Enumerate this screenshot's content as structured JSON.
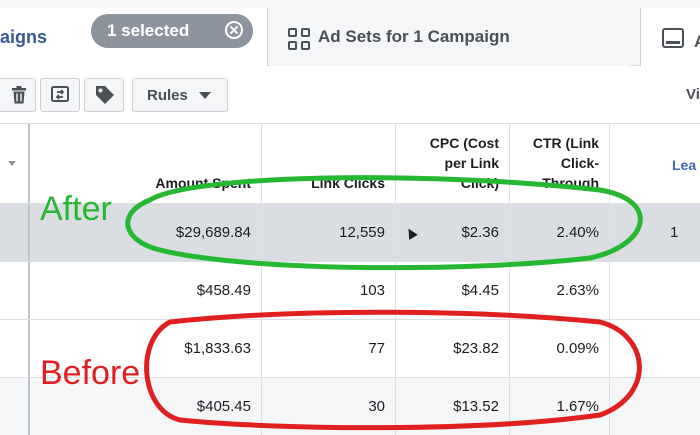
{
  "tabs": {
    "campaigns": {
      "label": "aigns"
    },
    "selected_pill": {
      "label": "1 selected"
    },
    "adsets": {
      "label": "Ad Sets for 1 Campaign"
    },
    "ads": {
      "label": "A"
    }
  },
  "toolbar": {
    "rules_label": "Rules",
    "view_label": "Vi"
  },
  "table": {
    "headers": {
      "amount": "Amount Spent",
      "clicks": "Link Clicks",
      "cpc": "CPC (Cost per Link Click)",
      "ctr": "CTR (Link Click-Through",
      "leads": "Lea"
    },
    "rows": [
      {
        "amount": "$29,689.84",
        "clicks": "12,559",
        "cpc": "$2.36",
        "ctr": "2.40%",
        "leads": "1"
      },
      {
        "amount": "$458.49",
        "clicks": "103",
        "cpc": "$4.45",
        "ctr": "2.63%",
        "leads": ""
      },
      {
        "amount": "$1,833.63",
        "clicks": "77",
        "cpc": "$23.82",
        "ctr": "0.09%",
        "leads": ""
      },
      {
        "amount": "$405.45",
        "clicks": "30",
        "cpc": "$13.52",
        "ctr": "1.67%",
        "leads": ""
      }
    ]
  },
  "annotations": {
    "after": {
      "label": "After",
      "color": "#27b833"
    },
    "before": {
      "label": "Before",
      "color": "#e02020"
    }
  },
  "colors": {
    "link_blue": "#385898",
    "pill_gray": "#8d949e",
    "total_row": "#dadde1"
  }
}
